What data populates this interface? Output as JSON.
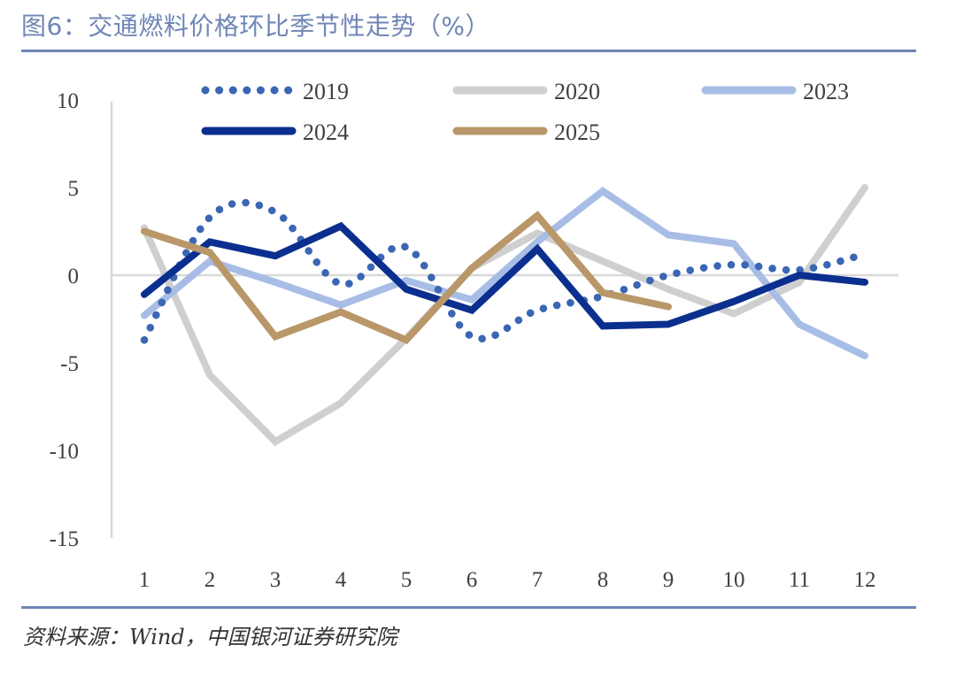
{
  "title": "图6：交通燃料价格环比季节性走势（%）",
  "source": "资料来源：Wind，中国银河证券研究院",
  "chart_data": {
    "type": "line",
    "title": "交通燃料价格环比季节性走势（%）",
    "xlabel": "",
    "ylabel": "",
    "x": [
      1,
      2,
      3,
      4,
      5,
      6,
      7,
      8,
      9,
      10,
      11,
      12
    ],
    "x_tick_labels": [
      "1",
      "2",
      "3",
      "4",
      "5",
      "6",
      "7",
      "8",
      "9",
      "10",
      "11",
      "12"
    ],
    "y_tick_labels": [
      "10",
      "5",
      "0",
      "-5",
      "-10",
      "-15"
    ],
    "y_ticks": [
      10,
      5,
      0,
      -5,
      -10,
      -15
    ],
    "ylim": [
      -15,
      10
    ],
    "grid": false,
    "legend_position": "top",
    "series": [
      {
        "name": "2019",
        "color": "#3a66b3",
        "style": "dotted-smooth",
        "values": [
          -3.7,
          3.3,
          3.6,
          -0.5,
          1.6,
          -3.5,
          -2.0,
          -1.2,
          0.0,
          0.6,
          0.3,
          1.2
        ]
      },
      {
        "name": "2020",
        "color": "#d0cfcf",
        "style": "solid",
        "values": [
          2.7,
          -5.7,
          -9.5,
          -7.3,
          -3.6,
          0.4,
          2.4,
          0.8,
          -0.8,
          -2.2,
          -0.4,
          5.0
        ]
      },
      {
        "name": "2023",
        "color": "#a8bde6",
        "style": "solid",
        "values": [
          -2.3,
          0.8,
          -0.4,
          -1.7,
          -0.3,
          -1.4,
          1.9,
          4.8,
          2.3,
          1.8,
          -2.8,
          -4.6
        ]
      },
      {
        "name": "2024",
        "color": "#0b2f8f",
        "style": "solid",
        "values": [
          -1.1,
          1.9,
          1.1,
          2.8,
          -0.8,
          -2.0,
          1.5,
          -2.9,
          -2.8,
          -1.5,
          0.0,
          -0.4
        ]
      },
      {
        "name": "2025",
        "color": "#b99769",
        "style": "solid",
        "values": [
          2.5,
          1.3,
          -3.5,
          -2.1,
          -3.7,
          0.4,
          3.4,
          -1.0,
          -1.8
        ]
      }
    ]
  }
}
